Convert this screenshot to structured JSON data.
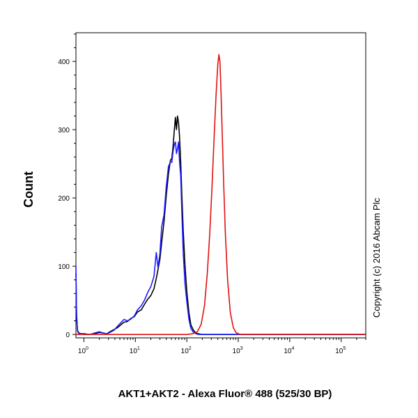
{
  "chart_data": {
    "type": "line",
    "title": "",
    "xlabel": "AKT1+AKT2 - Alexa Fluor® 488 (525/30 BP)",
    "ylabel": "Count",
    "x_scale": "log",
    "xlim": [
      0.7,
      300000
    ],
    "ylim": [
      -5,
      442
    ],
    "x_ticks": [
      {
        "base": "10",
        "exp": "0",
        "value": 1
      },
      {
        "base": "10",
        "exp": "1",
        "value": 10
      },
      {
        "base": "10",
        "exp": "2",
        "value": 100
      },
      {
        "base": "10",
        "exp": "3",
        "value": 1000
      },
      {
        "base": "10",
        "exp": "4",
        "value": 10000
      },
      {
        "base": "10",
        "exp": "5",
        "value": 100000
      }
    ],
    "y_ticks": [
      {
        "label": "0",
        "value": 0
      },
      {
        "label": "100",
        "value": 100
      },
      {
        "label": "200",
        "value": 200
      },
      {
        "label": "300",
        "value": 300
      },
      {
        "label": "400",
        "value": 400
      }
    ],
    "grid": false,
    "legend": "none",
    "annotation": "Copyright (c) 2016 Abcam Plc",
    "series": [
      {
        "color": "#000000",
        "x": [
          0.7,
          0.72,
          0.75,
          0.8,
          0.9,
          1.0,
          1.3,
          1.6,
          2.0,
          2.4,
          2.8,
          3.2,
          3.8,
          4.5,
          5.2,
          6.0,
          7.0,
          8.0,
          9.5,
          11,
          13,
          15,
          17.5,
          20,
          23,
          25.5,
          27.5,
          30,
          32.5,
          36,
          40,
          44,
          48,
          51,
          54,
          57,
          60,
          63,
          66,
          69,
          72,
          76,
          80,
          85,
          92,
          100,
          110,
          120,
          135,
          150,
          170,
          200,
          250,
          400,
          1000,
          10000,
          300000
        ],
        "y": [
          90,
          30,
          6,
          2,
          1,
          1,
          0,
          1,
          3,
          2,
          1,
          4,
          7,
          10,
          14,
          18,
          19,
          23,
          26,
          33,
          36,
          44,
          52,
          57,
          67,
          82,
          95,
          110,
          135,
          165,
          205,
          235,
          255,
          258,
          275,
          298,
          318,
          300,
          320,
          310,
          292,
          252,
          205,
          152,
          102,
          62,
          32,
          14,
          6,
          2,
          1,
          0,
          0,
          0,
          0,
          0,
          0
        ]
      },
      {
        "color": "#1a1aff",
        "x": [
          0.7,
          0.72,
          0.75,
          0.8,
          0.9,
          1.0,
          1.3,
          1.6,
          2.0,
          2.4,
          2.8,
          3.2,
          3.8,
          4.5,
          5.2,
          6.0,
          7.0,
          8.0,
          9.5,
          11,
          13,
          15,
          17.5,
          20,
          23,
          25.5,
          27.5,
          30,
          32.5,
          36,
          40,
          44,
          48,
          51,
          54,
          57,
          60,
          63,
          66,
          69,
          72,
          76,
          80,
          85,
          92,
          100,
          110,
          120,
          135,
          150,
          170,
          200,
          250,
          400,
          1000,
          10000,
          300000
        ],
        "y": [
          100,
          30,
          5,
          1,
          1,
          0,
          0,
          2,
          4,
          2,
          1,
          3,
          6,
          12,
          17,
          22,
          20,
          22,
          27,
          36,
          42,
          50,
          62,
          70,
          85,
          120,
          98,
          118,
          158,
          175,
          218,
          246,
          253,
          252,
          268,
          278,
          282,
          265,
          272,
          282,
          255,
          232,
          180,
          120,
          75,
          48,
          22,
          9,
          3,
          1,
          0,
          0,
          0,
          0,
          0,
          0,
          0
        ]
      },
      {
        "color": "#e01010",
        "x": [
          0.7,
          100,
          130,
          160,
          190,
          220,
          250,
          280,
          310,
          340,
          370,
          400,
          420,
          440,
          460,
          490,
          520,
          560,
          620,
          700,
          800,
          900,
          1000,
          1150,
          1400,
          2000,
          10000,
          300000
        ],
        "y": [
          0,
          0,
          1,
          4,
          15,
          42,
          90,
          150,
          220,
          290,
          350,
          395,
          410,
          400,
          360,
          290,
          220,
          150,
          80,
          32,
          10,
          3,
          1,
          0,
          0,
          0,
          0,
          0
        ]
      }
    ]
  }
}
